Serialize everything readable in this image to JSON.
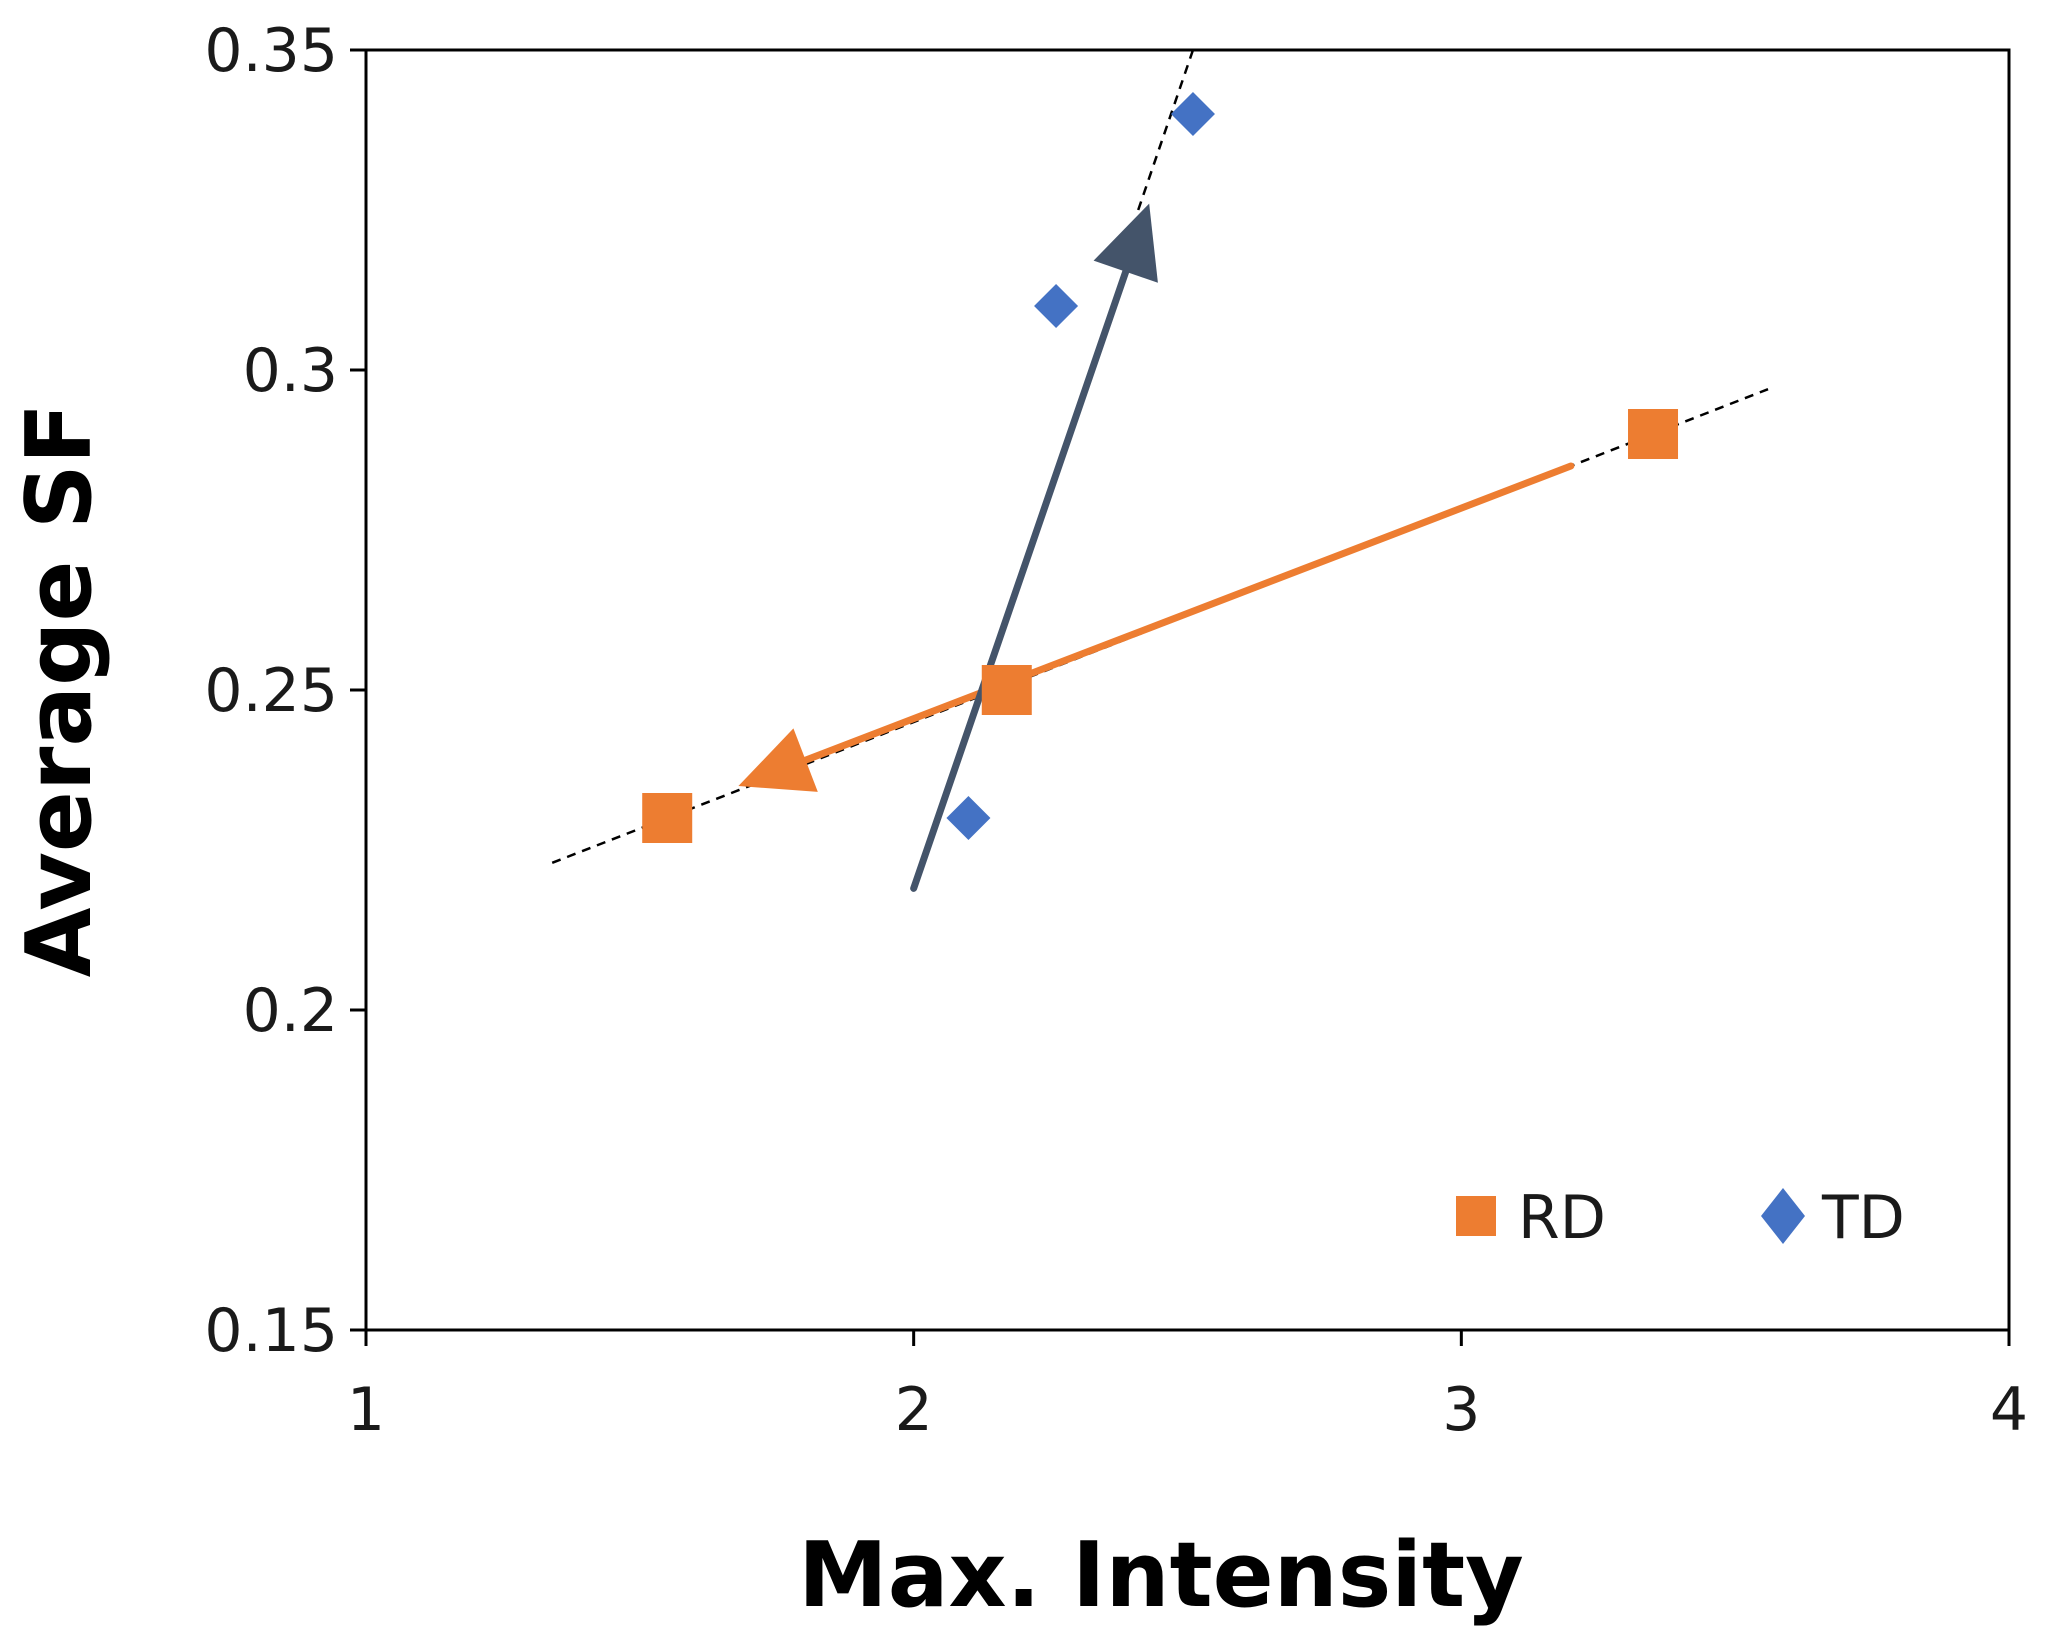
{
  "chart_data": {
    "type": "scatter",
    "title": "",
    "xlabel": "Max. Intensity",
    "ylabel": "Average SF",
    "xlim": [
      1,
      4
    ],
    "ylim": [
      0.15,
      0.35
    ],
    "x_ticks": [
      1,
      2,
      3,
      4
    ],
    "x_tick_labels": [
      "1",
      "2",
      "3",
      "4"
    ],
    "y_ticks": [
      0.15,
      0.2,
      0.25,
      0.3,
      0.35
    ],
    "y_tick_labels": [
      "0.15",
      "0.2",
      "0.25",
      "0.3",
      "0.35"
    ],
    "grid": false,
    "legend_position": "bottom-right",
    "series": [
      {
        "name": "RD",
        "marker": "square",
        "color": "#ED7D31",
        "points": [
          [
            1.55,
            0.23
          ],
          [
            2.17,
            0.25
          ],
          [
            3.35,
            0.29
          ]
        ]
      },
      {
        "name": "TD",
        "marker": "diamond",
        "color": "#4472C4",
        "points": [
          [
            2.1,
            0.23
          ],
          [
            2.26,
            0.31
          ],
          [
            2.51,
            0.34
          ]
        ]
      }
    ],
    "trendlines": [
      {
        "series": "RD",
        "style": "dashed",
        "color": "#000000",
        "from": [
          1.34,
          0.223
        ],
        "to": [
          3.56,
          0.297
        ]
      },
      {
        "series": "TD",
        "style": "dashed",
        "color": "#000000",
        "from": [
          2.41,
          0.325
        ],
        "to": [
          2.51,
          0.35
        ]
      }
    ],
    "annotations": [
      {
        "type": "arrow",
        "color": "#ED7D31",
        "from": [
          3.2,
          0.285
        ],
        "to": [
          1.68,
          0.235
        ]
      },
      {
        "type": "arrow",
        "color": "#44546A",
        "from": [
          2.0,
          0.219
        ],
        "to": [
          2.43,
          0.326
        ]
      }
    ]
  }
}
